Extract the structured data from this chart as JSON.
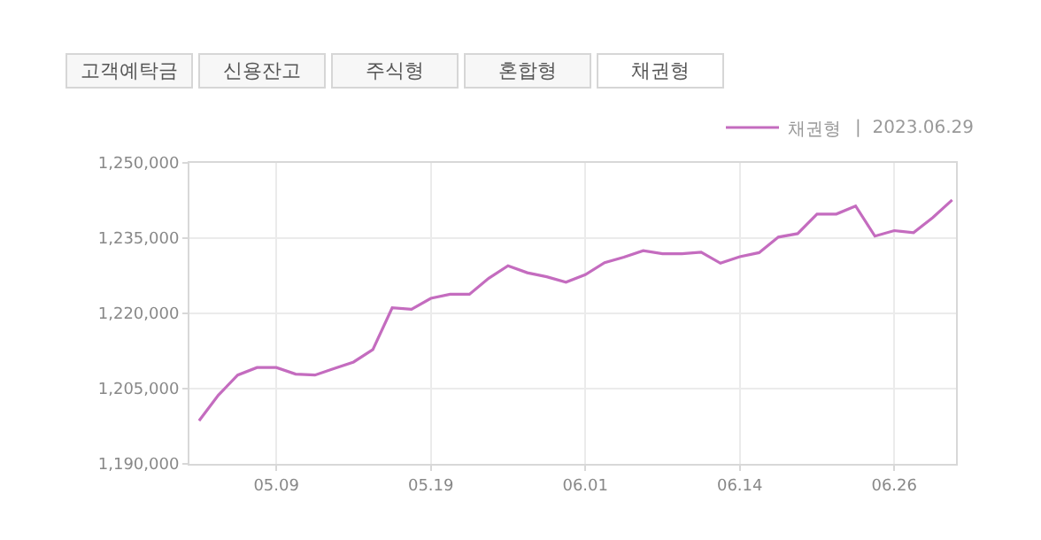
{
  "chart_data": {
    "type": "line",
    "categories": [
      null,
      null,
      null,
      null,
      "05.09",
      null,
      null,
      null,
      null,
      null,
      null,
      null,
      "05.19",
      null,
      null,
      null,
      null,
      null,
      null,
      null,
      "06.01",
      null,
      null,
      null,
      null,
      null,
      null,
      null,
      "06.14",
      null,
      null,
      null,
      null,
      null,
      null,
      null,
      "06.26",
      null,
      null,
      null
    ],
    "series": [
      {
        "name": "채권형",
        "color": "#c46cbf",
        "values": [
          1198600,
          1203700,
          1207700,
          1209200,
          1209200,
          1207900,
          1207700,
          1209000,
          1210300,
          1212800,
          1221100,
          1220800,
          1223000,
          1223800,
          1223800,
          1227000,
          1229500,
          1228100,
          1227300,
          1226200,
          1227700,
          1230100,
          1231200,
          1232500,
          1231900,
          1231900,
          1232200,
          1230000,
          1231300,
          1232100,
          1235200,
          1235900,
          1239800,
          1239800,
          1241400,
          1235400,
          1236500,
          1236100,
          1239100,
          1242600
        ]
      }
    ],
    "ylim": [
      1190000,
      1250000
    ],
    "yticks": [
      {
        "value": 1190000,
        "label": "1,190,000"
      },
      {
        "value": 1205000,
        "label": "1,205,000"
      },
      {
        "value": 1220000,
        "label": "1,220,000"
      },
      {
        "value": 1235000,
        "label": "1,235,000"
      },
      {
        "value": 1250000,
        "label": "1,250,000"
      }
    ],
    "grid": true,
    "legend": "top right",
    "marker": "none",
    "line_style": "solid",
    "annotations": [
      "고객예탁금",
      "신용잔고",
      "주식형",
      "혼합형",
      "채권형",
      "|  2023.06.29"
    ]
  }
}
